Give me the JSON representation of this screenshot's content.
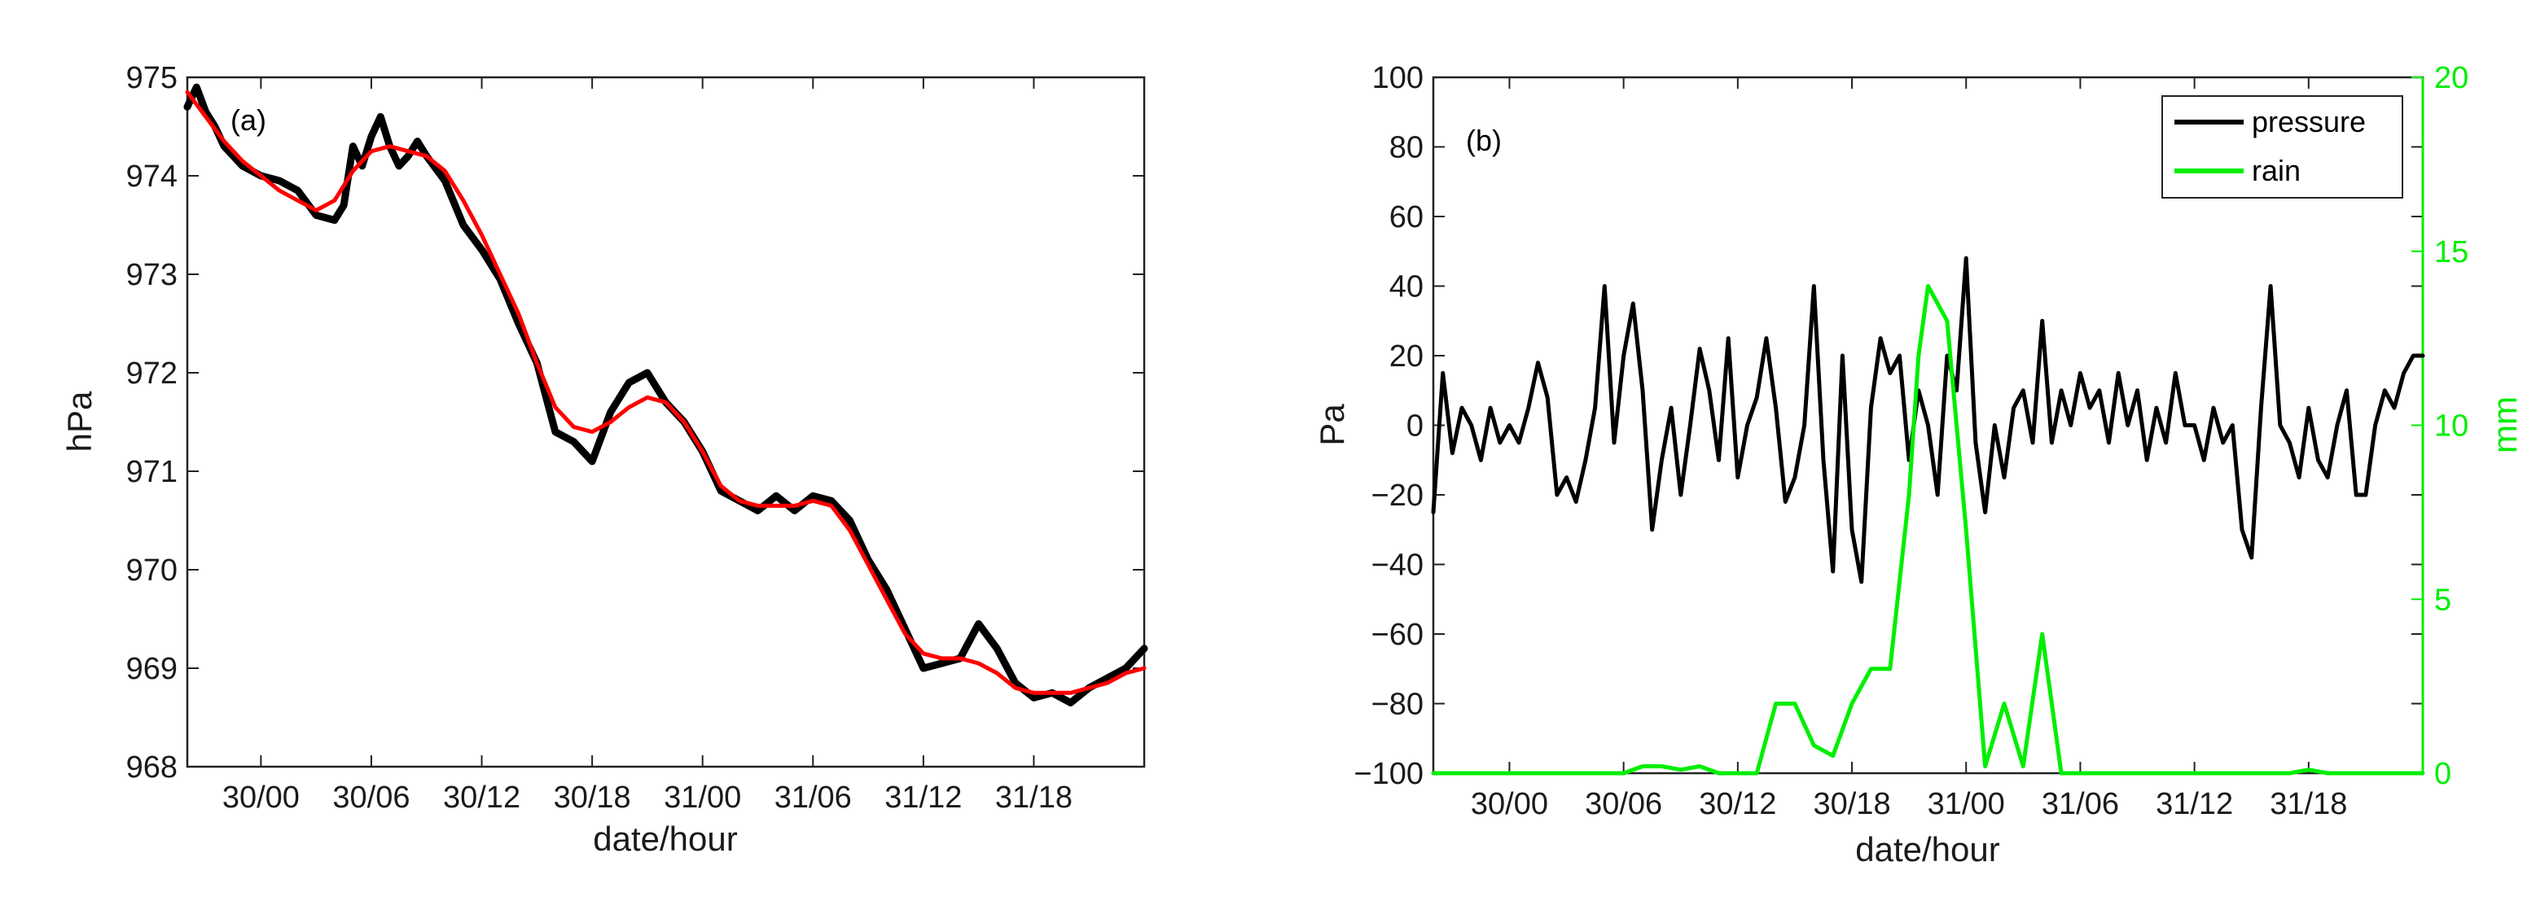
{
  "chart_data": [
    {
      "type": "line",
      "panel_label": "(a)",
      "xlabel": "date/hour",
      "ylabel": "hPa",
      "xticks": [
        "30/00",
        "30/06",
        "30/12",
        "30/18",
        "31/00",
        "31/06",
        "31/12",
        "31/18"
      ],
      "ylim": [
        968,
        975
      ],
      "yticks": [
        "968",
        "969",
        "970",
        "971",
        "972",
        "973",
        "974",
        "975"
      ],
      "grid": false,
      "series": [
        {
          "color": "#000000",
          "style": "noisy raw",
          "x": [
            -4,
            -3.5,
            -3,
            -2.5,
            -2,
            -1.5,
            -1,
            0,
            1,
            2,
            3,
            4,
            4.5,
            5,
            5.5,
            6,
            6.5,
            7,
            7.5,
            8,
            8.5,
            9,
            10,
            11,
            12,
            13,
            14,
            15,
            16,
            17,
            18,
            19,
            20,
            21,
            22,
            23,
            24,
            25,
            26,
            27,
            28,
            29,
            30,
            31,
            32,
            33,
            34,
            35,
            36,
            37,
            38,
            39,
            40,
            41,
            42,
            43,
            44,
            45,
            46,
            47,
            48
          ],
          "y": [
            974.7,
            974.9,
            974.65,
            974.5,
            974.3,
            974.2,
            974.1,
            974.0,
            973.95,
            973.85,
            973.6,
            973.55,
            973.7,
            974.3,
            974.1,
            974.4,
            974.6,
            974.3,
            974.1,
            974.2,
            974.35,
            974.2,
            973.95,
            973.5,
            973.25,
            972.95,
            972.5,
            972.1,
            971.4,
            971.3,
            971.1,
            971.6,
            971.9,
            972.0,
            971.7,
            971.5,
            971.2,
            970.8,
            970.7,
            970.6,
            970.75,
            970.6,
            970.75,
            970.7,
            970.5,
            970.1,
            969.8,
            969.4,
            969.0,
            969.05,
            969.1,
            969.45,
            969.2,
            968.85,
            968.7,
            968.75,
            968.65,
            968.8,
            968.9,
            969.0,
            969.2
          ]
        },
        {
          "color": "#ff0000",
          "style": "smoothed fit",
          "x": [
            -4,
            -3,
            -2,
            -1,
            0,
            1,
            2,
            3,
            4,
            5,
            6,
            7,
            8,
            9,
            10,
            11,
            12,
            13,
            14,
            15,
            16,
            17,
            18,
            19,
            20,
            21,
            22,
            23,
            24,
            25,
            26,
            27,
            28,
            29,
            30,
            31,
            32,
            33,
            34,
            35,
            36,
            37,
            38,
            39,
            40,
            41,
            42,
            43,
            44,
            45,
            46,
            47,
            48
          ],
          "y": [
            974.85,
            974.6,
            974.35,
            974.15,
            974.0,
            973.85,
            973.75,
            973.65,
            973.75,
            974.05,
            974.25,
            974.3,
            974.25,
            974.2,
            974.05,
            973.75,
            973.4,
            973.0,
            972.6,
            972.1,
            971.65,
            971.45,
            971.4,
            971.5,
            971.65,
            971.75,
            971.7,
            971.5,
            971.2,
            970.85,
            970.7,
            970.65,
            970.65,
            970.65,
            970.7,
            970.65,
            970.4,
            970.05,
            969.7,
            969.35,
            969.15,
            969.1,
            969.1,
            969.05,
            968.95,
            968.8,
            968.75,
            968.75,
            968.75,
            968.8,
            968.85,
            968.95,
            969.0
          ]
        }
      ]
    },
    {
      "type": "line",
      "panel_label": "(b)",
      "xlabel": "date/hour",
      "ylabel": "Pa",
      "ylabel_right": "mm",
      "xticks": [
        "30/00",
        "30/06",
        "30/12",
        "30/18",
        "31/00",
        "31/06",
        "31/12",
        "31/18"
      ],
      "ylim": [
        -100,
        100
      ],
      "yticks": [
        "−100",
        "−80",
        "−60",
        "−40",
        "−20",
        "0",
        "20",
        "40",
        "60",
        "80",
        "100"
      ],
      "ylim_right": [
        0,
        20
      ],
      "yticks_right": [
        "0",
        "5",
        "10",
        "15",
        "20"
      ],
      "legend": {
        "placement": "top-right",
        "entries": [
          "pressure",
          "rain"
        ]
      },
      "series": [
        {
          "name": "pressure",
          "color": "#000000",
          "axis": "left",
          "x": [
            -4,
            -3.5,
            -3,
            -2.5,
            -2,
            -1.5,
            -1,
            -0.5,
            0,
            0.5,
            1,
            1.5,
            2,
            2.5,
            3,
            3.5,
            4,
            4.5,
            5,
            5.5,
            6,
            6.5,
            7,
            7.5,
            8,
            8.5,
            9,
            9.5,
            10,
            10.5,
            11,
            11.5,
            12,
            12.5,
            13,
            13.5,
            14,
            14.5,
            15,
            15.5,
            16,
            16.5,
            17,
            17.5,
            18,
            18.5,
            19,
            19.5,
            20,
            20.5,
            21,
            21.5,
            22,
            22.5,
            23,
            23.5,
            24,
            24.5,
            25,
            25.5,
            26,
            26.5,
            27,
            27.5,
            28,
            28.5,
            29,
            29.5,
            30,
            30.5,
            31,
            31.5,
            32,
            32.5,
            33,
            33.5,
            34,
            34.5,
            35,
            35.5,
            36,
            36.5,
            37,
            37.5,
            38,
            38.5,
            39,
            39.5,
            40,
            40.5,
            41,
            41.5,
            42,
            42.5,
            43,
            43.5,
            44,
            44.5,
            45,
            45.5,
            46,
            46.5,
            47,
            47.5,
            48
          ],
          "y": [
            -25,
            15,
            -8,
            5,
            0,
            -10,
            5,
            -5,
            0,
            -5,
            5,
            18,
            8,
            -20,
            -15,
            -22,
            -10,
            5,
            40,
            -5,
            20,
            35,
            10,
            -30,
            -10,
            5,
            -20,
            0,
            22,
            10,
            -10,
            25,
            -15,
            0,
            8,
            25,
            5,
            -22,
            -15,
            0,
            40,
            -10,
            -42,
            20,
            -30,
            -45,
            5,
            25,
            15,
            20,
            -10,
            10,
            0,
            -20,
            20,
            10,
            48,
            -5,
            -25,
            0,
            -15,
            5,
            10,
            -5,
            30,
            -5,
            10,
            0,
            15,
            5,
            10,
            -5,
            15,
            0,
            10,
            -10,
            5,
            -5,
            15,
            0,
            0,
            -10,
            5,
            -5,
            0,
            -30,
            -38,
            5,
            40,
            0,
            -5,
            -15,
            5,
            -10,
            -15,
            0,
            10,
            -20,
            -20,
            0,
            10,
            5,
            15,
            20,
            20
          ]
        },
        {
          "name": "rain",
          "color": "#00ee00",
          "axis": "right",
          "x": [
            -4,
            0,
            3,
            5,
            6,
            7,
            8,
            9,
            10,
            11,
            12,
            13,
            14,
            15,
            16,
            17,
            18,
            19,
            20,
            21,
            21.5,
            22,
            23,
            24,
            25,
            26,
            27,
            28,
            29,
            30,
            31,
            32,
            33,
            34,
            35,
            36,
            37,
            38,
            39,
            40,
            41,
            42,
            43,
            44,
            45,
            46,
            47,
            48
          ],
          "y": [
            0,
            0,
            0,
            0,
            0,
            0.2,
            0.2,
            0.1,
            0.2,
            0,
            0,
            0,
            2,
            2,
            0.8,
            0.5,
            2,
            3,
            3,
            8,
            12,
            14,
            13,
            7,
            0.2,
            2,
            0.2,
            4,
            0,
            0,
            0,
            0,
            0,
            0,
            0,
            0,
            0,
            0,
            0,
            0,
            0,
            0.1,
            0,
            0,
            0,
            0,
            0,
            0
          ]
        }
      ]
    }
  ]
}
